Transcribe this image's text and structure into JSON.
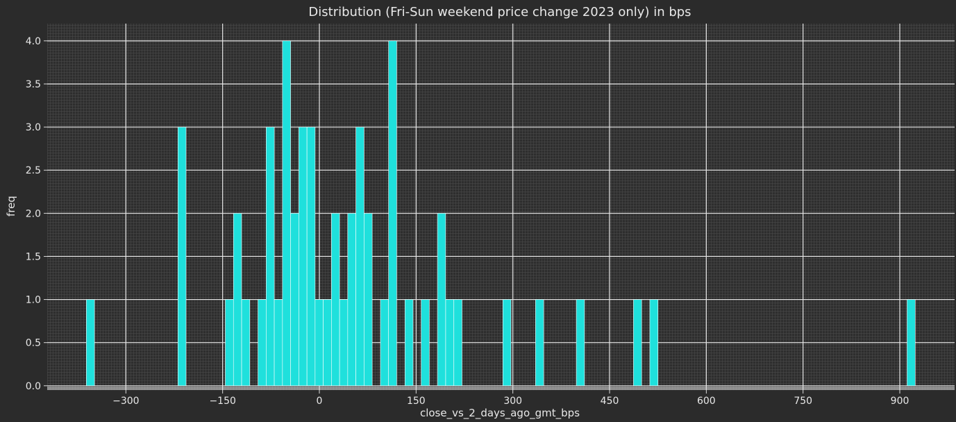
{
  "chart_data": {
    "type": "bar",
    "title": "Distribution (Fri-Sun weekend price change 2023 only) in bps",
    "xlabel": "close_vs_2_days_ago_gmt_bps",
    "ylabel": "freq",
    "xlim": [
      -422,
      985
    ],
    "ylim": [
      -0.05,
      4.2
    ],
    "grid": true,
    "xticks": [
      -300,
      -150,
      0,
      150,
      300,
      450,
      600,
      750,
      900
    ],
    "xtick_labels": [
      "−300",
      "−150",
      "0",
      "150",
      "300",
      "450",
      "600",
      "750",
      "900"
    ],
    "yticks": [
      0,
      0.5,
      1,
      1.5,
      2,
      2.5,
      3,
      3.5,
      4
    ],
    "ytick_labels": [
      "0.0",
      "0.5",
      "1.0",
      "1.5",
      "2.0",
      "2.5",
      "3.0",
      "3.5",
      "4.0"
    ],
    "bin_width": 12.66,
    "bar_color": "#1fe0dc",
    "bar_edge_color": "#ffffff",
    "bins": [
      {
        "x": -355.0,
        "count": 1
      },
      {
        "x": -213.0,
        "count": 3
      },
      {
        "x": -139.5,
        "count": 1
      },
      {
        "x": -126.9,
        "count": 2
      },
      {
        "x": -114.2,
        "count": 1
      },
      {
        "x": -88.9,
        "count": 1
      },
      {
        "x": -76.2,
        "count": 3
      },
      {
        "x": -63.6,
        "count": 1
      },
      {
        "x": -50.9,
        "count": 4
      },
      {
        "x": -38.3,
        "count": 2
      },
      {
        "x": -25.6,
        "count": 3
      },
      {
        "x": -12.9,
        "count": 3
      },
      {
        "x": -0.3,
        "count": 1
      },
      {
        "x": 12.4,
        "count": 1
      },
      {
        "x": 25.0,
        "count": 2
      },
      {
        "x": 37.7,
        "count": 1
      },
      {
        "x": 50.3,
        "count": 2
      },
      {
        "x": 63.0,
        "count": 3
      },
      {
        "x": 75.6,
        "count": 2
      },
      {
        "x": 101.0,
        "count": 1
      },
      {
        "x": 113.6,
        "count": 4
      },
      {
        "x": 139.0,
        "count": 1
      },
      {
        "x": 164.2,
        "count": 1
      },
      {
        "x": 189.5,
        "count": 2
      },
      {
        "x": 202.2,
        "count": 1
      },
      {
        "x": 214.9,
        "count": 1
      },
      {
        "x": 290.8,
        "count": 1
      },
      {
        "x": 341.5,
        "count": 1
      },
      {
        "x": 404.8,
        "count": 1
      },
      {
        "x": 493.4,
        "count": 1
      },
      {
        "x": 518.7,
        "count": 1
      },
      {
        "x": 917.6,
        "count": 1
      }
    ]
  }
}
